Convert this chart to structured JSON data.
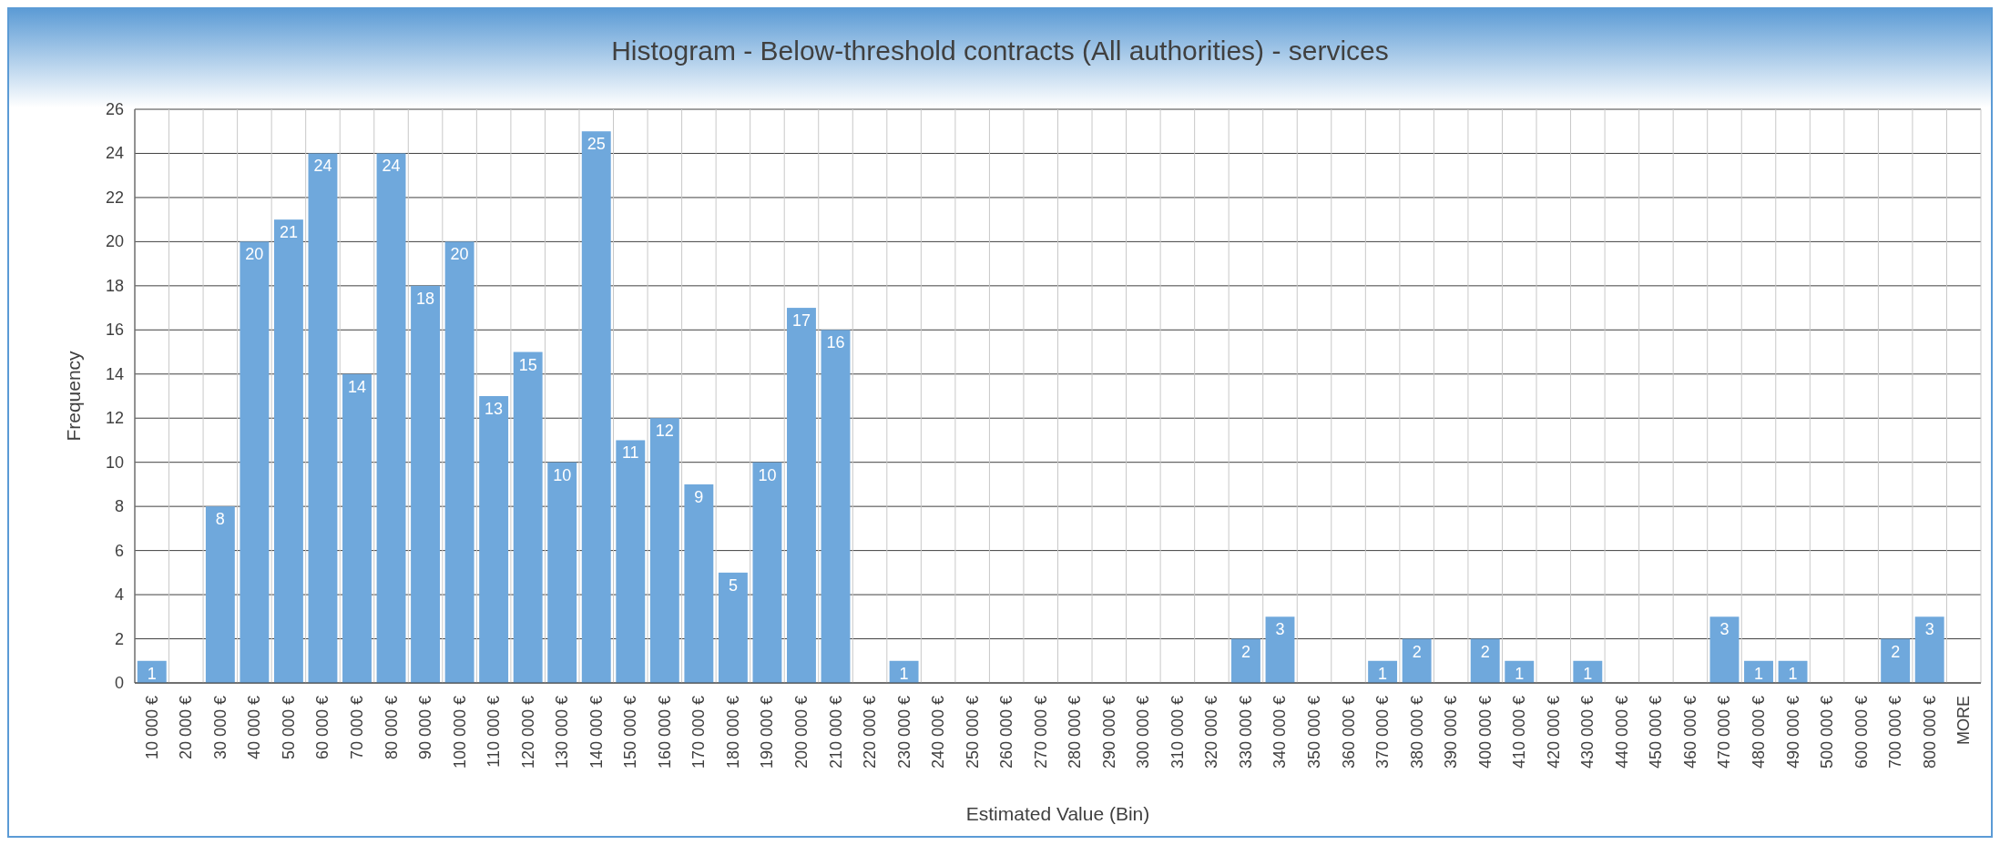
{
  "chart_data": {
    "type": "bar",
    "title": "Histogram - Below-threshold contracts (All authorities) - services",
    "xlabel": "Estimated Value (Bin)",
    "ylabel": "Frequency",
    "categories": [
      "10 000 €",
      "20 000 €",
      "30 000 €",
      "40 000 €",
      "50 000 €",
      "60 000 €",
      "70 000 €",
      "80 000 €",
      "90 000 €",
      "100 000 €",
      "110 000 €",
      "120 000 €",
      "130 000 €",
      "140 000 €",
      "150 000 €",
      "160 000 €",
      "170 000 €",
      "180 000 €",
      "190 000 €",
      "200 000 €",
      "210 000 €",
      "220 000 €",
      "230 000 €",
      "240 000 €",
      "250 000 €",
      "260 000 €",
      "270 000 €",
      "280 000 €",
      "290 000 €",
      "300 000 €",
      "310 000 €",
      "320 000 €",
      "330 000 €",
      "340 000 €",
      "350 000 €",
      "360 000 €",
      "370 000 €",
      "380 000 €",
      "390 000 €",
      "400 000 €",
      "410 000 €",
      "420 000 €",
      "430 000 €",
      "440 000 €",
      "450 000 €",
      "460 000 €",
      "470 000 €",
      "480 000 €",
      "490 000 €",
      "500 000 €",
      "600 000 €",
      "700 000 €",
      "800 000 €",
      "MORE"
    ],
    "values": [
      1,
      0,
      8,
      20,
      21,
      24,
      14,
      24,
      18,
      20,
      13,
      15,
      10,
      25,
      11,
      12,
      9,
      5,
      10,
      17,
      16,
      0,
      1,
      0,
      0,
      0,
      0,
      0,
      0,
      0,
      0,
      0,
      2,
      3,
      0,
      0,
      1,
      2,
      0,
      2,
      1,
      0,
      1,
      0,
      0,
      0,
      3,
      1,
      1,
      0,
      0,
      2,
      3,
      0
    ],
    "value_labels": [
      "1",
      null,
      "8",
      "20",
      "21",
      "24",
      "14",
      "24",
      "18",
      "20",
      "13",
      "15",
      "10",
      "25",
      "11",
      "12",
      "9",
      "5",
      "10",
      "17",
      "16",
      null,
      "1",
      null,
      null,
      null,
      null,
      null,
      null,
      null,
      null,
      null,
      "2",
      "3",
      null,
      null,
      "1",
      "2",
      null,
      "2",
      "1",
      null,
      "1",
      null,
      null,
      null,
      "3",
      "1",
      "1",
      null,
      null,
      "2",
      "3",
      null
    ],
    "color": "#6fa8dc",
    "ylim": [
      0,
      26
    ],
    "yticks": [
      0,
      2,
      4,
      6,
      8,
      10,
      12,
      14,
      16,
      18,
      20,
      22,
      24,
      26
    ],
    "grid": true
  }
}
